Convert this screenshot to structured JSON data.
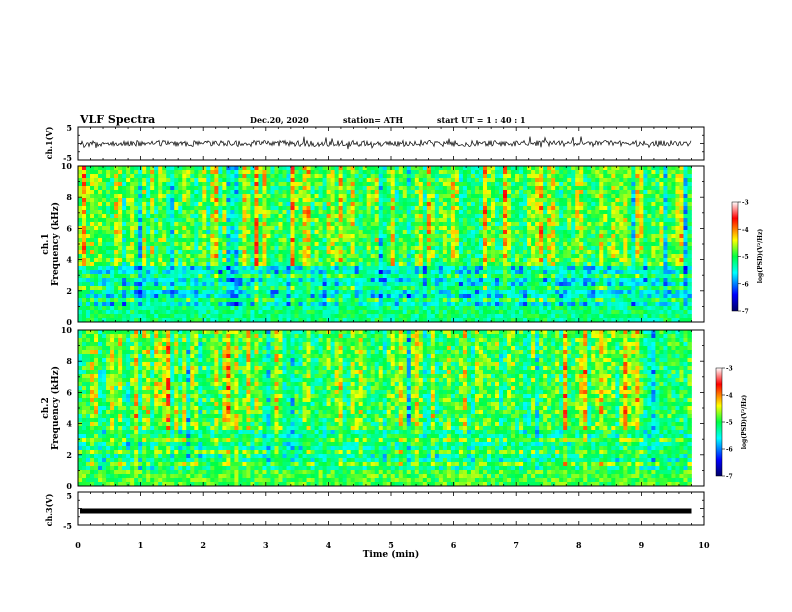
{
  "header": {
    "title": "VLF Spectra",
    "date": "Dec.20, 2020",
    "station": "station= ATH",
    "start": "start  UT =   1 : 40 : 1"
  },
  "chart_data": [
    {
      "type": "line",
      "panel": "ch1-waveform",
      "ylabel": "ch.1(V)",
      "ylim": [
        -5,
        5
      ],
      "yticks": [
        "5",
        "-5"
      ],
      "xlim": [
        0,
        10
      ],
      "data_end_min": 9.8,
      "description_of_values": "noisy waveform fluctuating around approximately 0 V"
    },
    {
      "type": "heatmap",
      "panel": "ch1-spectrogram",
      "ylabel": "ch.1",
      "ylabel2": "Frequency (kHz)",
      "ylim": [
        0,
        10
      ],
      "yticks": [
        "0",
        "2",
        "4",
        "6",
        "8",
        "10"
      ],
      "xlim": [
        0,
        10
      ],
      "data_end_min": 9.8,
      "colorbar": {
        "label": "log(PSD)(V²/Hz)",
        "range": [
          -7,
          -3
        ],
        "ticks": [
          "-3",
          "-4",
          "-5",
          "-6",
          "-7"
        ]
      }
    },
    {
      "type": "heatmap",
      "panel": "ch2-spectrogram",
      "ylabel": "ch.2",
      "ylabel2": "Frequency (kHz)",
      "ylim": [
        0,
        10
      ],
      "yticks": [
        "0",
        "2",
        "4",
        "6",
        "8",
        "10"
      ],
      "xlim": [
        0,
        10
      ],
      "data_end_min": 9.8,
      "colorbar": {
        "label": "log(PSD)(V²/Hz)",
        "range": [
          -7,
          -3
        ],
        "ticks": [
          "-3",
          "-4",
          "-5",
          "-6",
          "-7"
        ]
      }
    },
    {
      "type": "line",
      "panel": "ch3-waveform",
      "ylabel": "ch.3(V)",
      "ylim": [
        -5,
        5
      ],
      "yticks": [
        "5",
        "-5"
      ],
      "xlim": [
        0,
        10
      ],
      "xlabel": "Time  (min)",
      "xticks": [
        "0",
        "1",
        "2",
        "3",
        "4",
        "5",
        "6",
        "7",
        "8",
        "9",
        "10"
      ],
      "data_end_min": 9.8,
      "description_of_values": "flat trace at approximately 0 V"
    }
  ],
  "colors": {
    "colormap": [
      "#000066",
      "#0000ff",
      "#00ffff",
      "#00ff44",
      "#ffff00",
      "#ff0000",
      "#ffffff"
    ],
    "trace": "#000000"
  }
}
